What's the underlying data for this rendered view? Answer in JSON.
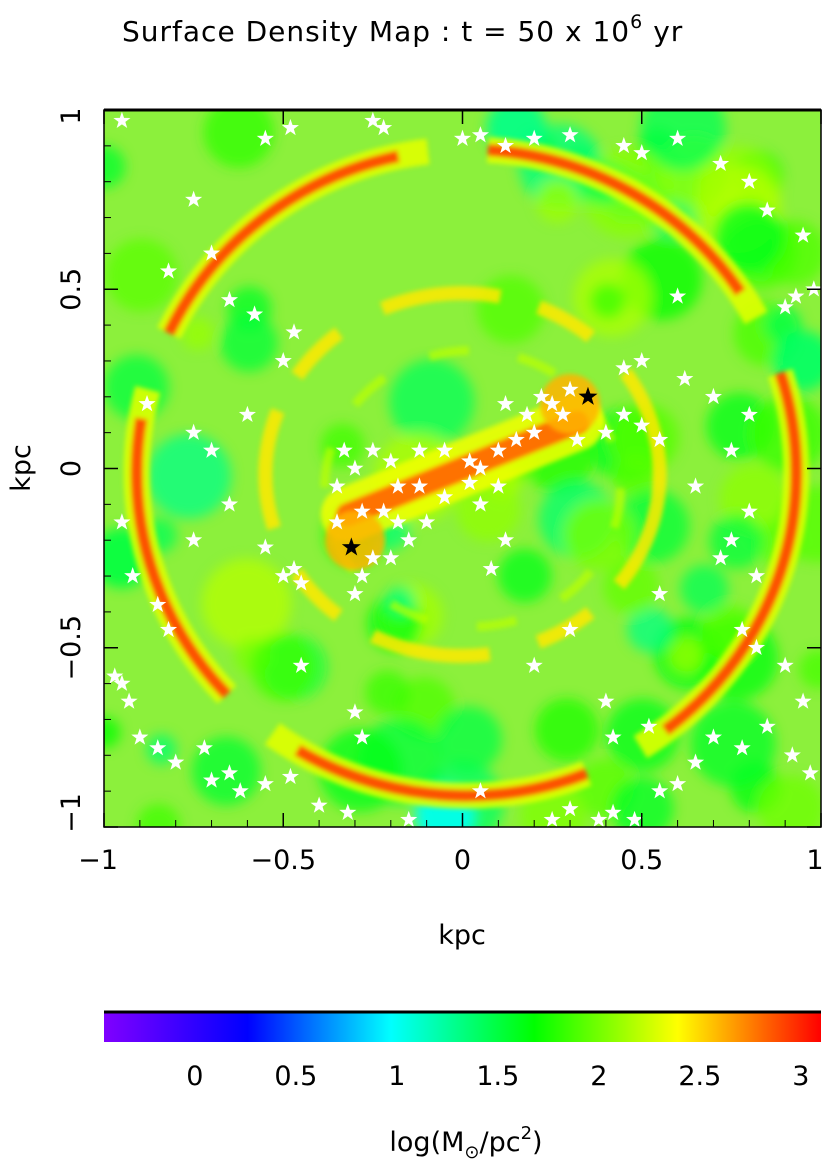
{
  "chart_data": {
    "type": "heatmap",
    "title": "Surface Density Map : t = 50 x 10",
    "title_exponent": "6",
    "title_unit": "yr",
    "xlabel": "kpc",
    "ylabel": "kpc",
    "xlim": [
      -1,
      1
    ],
    "ylim": [
      -1,
      1
    ],
    "xticks": [
      -1,
      -0.5,
      0,
      0.5,
      1
    ],
    "xtick_labels": [
      "−1",
      "−0.5",
      "0",
      "0.5",
      "1"
    ],
    "yticks": [
      -1,
      -0.5,
      0,
      0.5,
      1
    ],
    "ytick_labels": [
      "−1",
      "−0.5",
      "0",
      "0.5",
      "1"
    ],
    "grid": false,
    "colorbar": {
      "range": [
        -0.45,
        3.1
      ],
      "ticks": [
        0,
        0.5,
        1,
        1.5,
        2,
        2.5,
        3
      ],
      "tick_labels": [
        "0",
        "0.5",
        "1",
        "1.5",
        "2",
        "2.5",
        "3"
      ],
      "label_prefix": "log(M",
      "label_sub": "⊙",
      "label_mid": "/pc",
      "label_sup": "2",
      "label_suffix": ")",
      "colors": [
        "#8000ff",
        "#0000ff",
        "#00ffff",
        "#00ff00",
        "#ffff00",
        "#ff0000"
      ]
    },
    "density_features": {
      "outer_ring_radius_kpc": 0.92,
      "inner_ring_radius_kpc": 0.55,
      "bar_angle_deg": 22,
      "bar_half_length_kpc": 0.42,
      "ring_log_density": 2.9,
      "bar_log_density": 2.8,
      "background_log_density": 1.75
    },
    "black_stars": [
      {
        "x": 0.35,
        "y": 0.2
      },
      {
        "x": -0.31,
        "y": -0.22
      }
    ],
    "white_stars": [
      [
        -0.95,
        0.97
      ],
      [
        -0.75,
        0.75
      ],
      [
        -0.82,
        0.55
      ],
      [
        -0.7,
        0.6
      ],
      [
        -0.55,
        0.92
      ],
      [
        -0.48,
        0.95
      ],
      [
        -0.25,
        0.97
      ],
      [
        -0.22,
        0.95
      ],
      [
        0.0,
        0.92
      ],
      [
        0.05,
        0.93
      ],
      [
        0.12,
        0.9
      ],
      [
        0.2,
        0.92
      ],
      [
        0.3,
        0.93
      ],
      [
        0.45,
        0.9
      ],
      [
        0.5,
        0.88
      ],
      [
        0.6,
        0.92
      ],
      [
        0.72,
        0.85
      ],
      [
        0.8,
        0.8
      ],
      [
        0.85,
        0.72
      ],
      [
        0.95,
        0.65
      ],
      [
        0.98,
        0.5
      ],
      [
        0.93,
        0.48
      ],
      [
        0.9,
        0.45
      ],
      [
        0.6,
        0.48
      ],
      [
        0.5,
        0.3
      ],
      [
        0.45,
        0.28
      ],
      [
        0.62,
        0.25
      ],
      [
        0.7,
        0.2
      ],
      [
        0.8,
        0.15
      ],
      [
        0.75,
        0.05
      ],
      [
        0.65,
        -0.05
      ],
      [
        0.8,
        -0.12
      ],
      [
        0.75,
        -0.2
      ],
      [
        0.82,
        -0.3
      ],
      [
        0.72,
        -0.25
      ],
      [
        0.55,
        -0.35
      ],
      [
        -0.95,
        -0.15
      ],
      [
        -0.92,
        -0.3
      ],
      [
        -0.85,
        -0.38
      ],
      [
        -0.75,
        -0.2
      ],
      [
        -0.65,
        -0.1
      ],
      [
        -0.55,
        -0.22
      ],
      [
        -0.5,
        -0.3
      ],
      [
        -0.47,
        -0.28
      ],
      [
        -0.45,
        -0.32
      ],
      [
        -0.6,
        0.15
      ],
      [
        -0.7,
        0.05
      ],
      [
        -0.75,
        0.1
      ],
      [
        -0.88,
        0.18
      ],
      [
        -0.47,
        0.38
      ],
      [
        -0.5,
        0.3
      ],
      [
        -0.58,
        0.43
      ],
      [
        -0.65,
        0.47
      ],
      [
        -0.33,
        0.05
      ],
      [
        -0.3,
        0.0
      ],
      [
        -0.35,
        -0.05
      ],
      [
        -0.25,
        0.05
      ],
      [
        -0.2,
        0.02
      ],
      [
        -0.12,
        0.05
      ],
      [
        -0.05,
        0.05
      ],
      [
        0.02,
        0.02
      ],
      [
        0.05,
        0.0
      ],
      [
        0.1,
        0.05
      ],
      [
        0.15,
        0.08
      ],
      [
        0.2,
        0.1
      ],
      [
        0.22,
        0.2
      ],
      [
        0.25,
        0.18
      ],
      [
        0.3,
        0.22
      ],
      [
        0.28,
        0.15
      ],
      [
        0.18,
        0.15
      ],
      [
        0.12,
        0.18
      ],
      [
        0.32,
        0.08
      ],
      [
        0.4,
        0.1
      ],
      [
        0.45,
        0.15
      ],
      [
        0.5,
        0.12
      ],
      [
        0.55,
        0.08
      ],
      [
        -0.35,
        -0.15
      ],
      [
        -0.28,
        -0.12
      ],
      [
        -0.22,
        -0.12
      ],
      [
        -0.18,
        -0.15
      ],
      [
        -0.15,
        -0.2
      ],
      [
        -0.2,
        -0.25
      ],
      [
        -0.25,
        -0.25
      ],
      [
        -0.28,
        -0.3
      ],
      [
        -0.18,
        -0.05
      ],
      [
        -0.12,
        -0.05
      ],
      [
        -0.05,
        -0.08
      ],
      [
        0.02,
        -0.04
      ],
      [
        0.1,
        -0.05
      ],
      [
        0.05,
        -0.1
      ],
      [
        -0.1,
        -0.15
      ],
      [
        -0.3,
        -0.35
      ],
      [
        0.12,
        -0.2
      ],
      [
        0.08,
        -0.28
      ],
      [
        -0.97,
        -0.58
      ],
      [
        -0.95,
        -0.6
      ],
      [
        -0.93,
        -0.65
      ],
      [
        -0.82,
        -0.45
      ],
      [
        -0.9,
        -0.75
      ],
      [
        -0.85,
        -0.78
      ],
      [
        -0.8,
        -0.82
      ],
      [
        -0.72,
        -0.78
      ],
      [
        -0.7,
        -0.87
      ],
      [
        -0.65,
        -0.85
      ],
      [
        -0.62,
        -0.9
      ],
      [
        -0.55,
        -0.88
      ],
      [
        -0.48,
        -0.86
      ],
      [
        -0.4,
        -0.94
      ],
      [
        -0.32,
        -0.96
      ],
      [
        -0.15,
        -0.98
      ],
      [
        0.05,
        -0.9
      ],
      [
        0.25,
        -0.98
      ],
      [
        0.3,
        -0.95
      ],
      [
        0.38,
        -0.98
      ],
      [
        0.42,
        -0.96
      ],
      [
        0.48,
        -0.98
      ],
      [
        0.55,
        -0.9
      ],
      [
        0.6,
        -0.88
      ],
      [
        0.65,
        -0.82
      ],
      [
        0.7,
        -0.75
      ],
      [
        0.78,
        -0.78
      ],
      [
        0.85,
        -0.72
      ],
      [
        0.92,
        -0.8
      ],
      [
        0.95,
        -0.65
      ],
      [
        0.97,
        -0.85
      ],
      [
        0.9,
        -0.55
      ],
      [
        0.82,
        -0.5
      ],
      [
        0.78,
        -0.45
      ],
      [
        0.42,
        -0.75
      ],
      [
        0.52,
        -0.72
      ],
      [
        0.3,
        -0.45
      ],
      [
        0.2,
        -0.55
      ],
      [
        0.4,
        -0.65
      ],
      [
        -0.45,
        -0.55
      ],
      [
        -0.3,
        -0.68
      ],
      [
        -0.28,
        -0.75
      ]
    ]
  }
}
